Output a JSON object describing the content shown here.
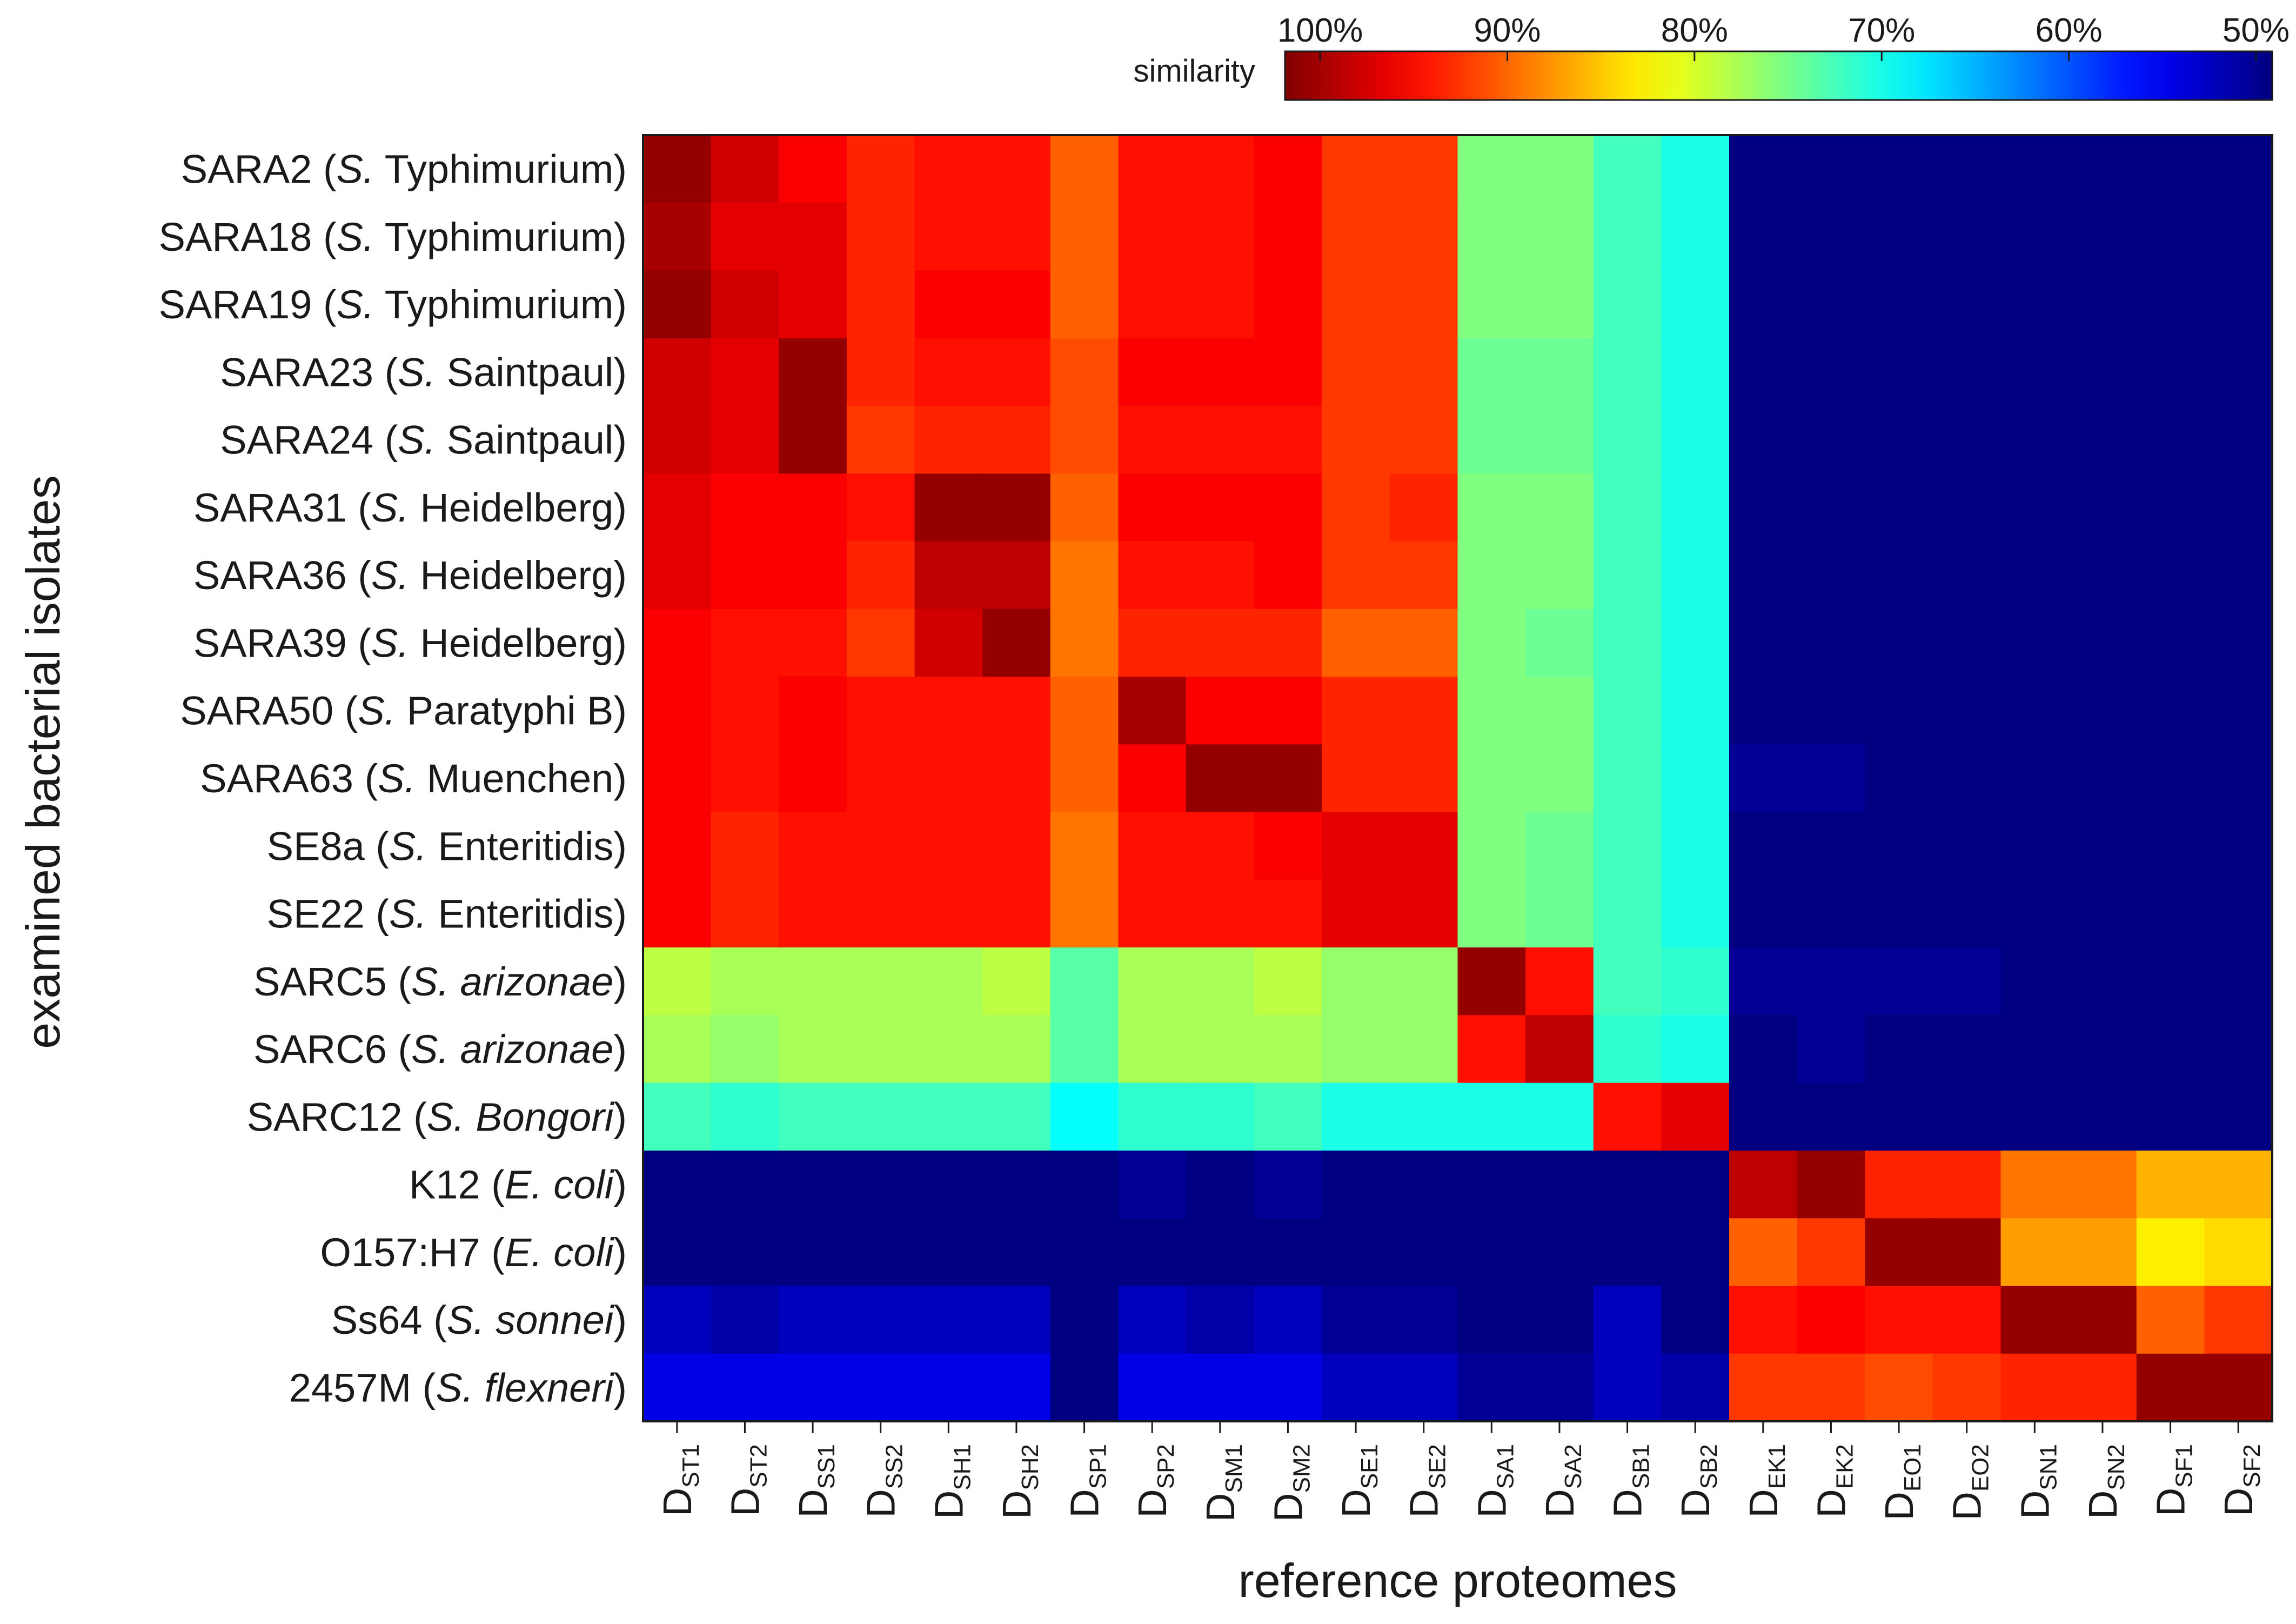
{
  "chart_data": {
    "type": "heatmap",
    "title": "",
    "xlabel": "reference proteomes",
    "ylabel": "examined bacterial isolates",
    "colorbar": {
      "label": "similarity",
      "ticks": [
        "100%",
        "90%",
        "80%",
        "70%",
        "60%",
        "50%"
      ],
      "range": [
        100,
        50
      ],
      "colormap": "jet"
    },
    "columns": [
      {
        "base": "D",
        "sub": "ST1"
      },
      {
        "base": "D",
        "sub": "ST2"
      },
      {
        "base": "D",
        "sub": "SS1"
      },
      {
        "base": "D",
        "sub": "SS2"
      },
      {
        "base": "D",
        "sub": "SH1"
      },
      {
        "base": "D",
        "sub": "SH2"
      },
      {
        "base": "D",
        "sub": "SP1"
      },
      {
        "base": "D",
        "sub": "SP2"
      },
      {
        "base": "D",
        "sub": "SM1"
      },
      {
        "base": "D",
        "sub": "SM2"
      },
      {
        "base": "D",
        "sub": "SE1"
      },
      {
        "base": "D",
        "sub": "SE2"
      },
      {
        "base": "D",
        "sub": "SA1"
      },
      {
        "base": "D",
        "sub": "SA2"
      },
      {
        "base": "D",
        "sub": "SB1"
      },
      {
        "base": "D",
        "sub": "SB2"
      },
      {
        "base": "D",
        "sub": "EK1"
      },
      {
        "base": "D",
        "sub": "EK2"
      },
      {
        "base": "D",
        "sub": "EO1"
      },
      {
        "base": "D",
        "sub": "EO2"
      },
      {
        "base": "D",
        "sub": "SN1"
      },
      {
        "base": "D",
        "sub": "SN2"
      },
      {
        "base": "D",
        "sub": "SF1"
      },
      {
        "base": "D",
        "sub": "SF2"
      }
    ],
    "rows": [
      {
        "name": "SARA2",
        "species": "S.",
        "rest": " Typhimurium",
        "italic_rest": false
      },
      {
        "name": "SARA18",
        "species": "S.",
        "rest": " Typhimurium",
        "italic_rest": false
      },
      {
        "name": "SARA19",
        "species": "S.",
        "rest": " Typhimurium",
        "italic_rest": false
      },
      {
        "name": "SARA23",
        "species": "S.",
        "rest": " Saintpaul",
        "italic_rest": false
      },
      {
        "name": "SARA24",
        "species": "S.",
        "rest": " Saintpaul",
        "italic_rest": false
      },
      {
        "name": "SARA31",
        "species": "S.",
        "rest": " Heidelberg",
        "italic_rest": false
      },
      {
        "name": "SARA36",
        "species": "S.",
        "rest": " Heidelberg",
        "italic_rest": false
      },
      {
        "name": "SARA39",
        "species": "S.",
        "rest": " Heidelberg",
        "italic_rest": false
      },
      {
        "name": "SARA50",
        "species": "S.",
        "rest": " Paratyphi B",
        "italic_rest": false
      },
      {
        "name": "SARA63",
        "species": "S.",
        "rest": " Muenchen",
        "italic_rest": false
      },
      {
        "name": "SE8a",
        "species": "S.",
        "rest": " Enteritidis",
        "italic_rest": false
      },
      {
        "name": "SE22",
        "species": "S.",
        "rest": " Enteritidis",
        "italic_rest": false
      },
      {
        "name": "SARC5",
        "species": "S.",
        "rest": " arizonae",
        "italic_rest": true
      },
      {
        "name": "SARC6",
        "species": "S.",
        "rest": " arizonae",
        "italic_rest": true
      },
      {
        "name": "SARC12",
        "species": "S.",
        "rest": " Bongori",
        "italic_rest": true
      },
      {
        "name": "K12",
        "species": "E.",
        "rest": " coli",
        "italic_rest": true
      },
      {
        "name": "O157:H7",
        "species": "E.",
        "rest": " coli",
        "italic_rest": true
      },
      {
        "name": "Ss64",
        "species": "S.",
        "rest": " sonnei",
        "italic_rest": true
      },
      {
        "name": "2457M",
        "species": "S.",
        "rest": " flexneri",
        "italic_rest": true
      }
    ],
    "values": [
      [
        99,
        96,
        94,
        92,
        93,
        93,
        89,
        93,
        93,
        94,
        91,
        91,
        75,
        75,
        72,
        70,
        50,
        50,
        50,
        50,
        50,
        50,
        50,
        50
      ],
      [
        98,
        95,
        95,
        92,
        93,
        93,
        89,
        93,
        93,
        94,
        91,
        91,
        75,
        75,
        72,
        70,
        50,
        50,
        50,
        50,
        50,
        50,
        50,
        50
      ],
      [
        99,
        96,
        95,
        92,
        94,
        94,
        89,
        93,
        93,
        94,
        91,
        91,
        75,
        75,
        72,
        70,
        50,
        50,
        50,
        50,
        50,
        50,
        50,
        50
      ],
      [
        96,
        95,
        99,
        92,
        93,
        93,
        90,
        94,
        94,
        94,
        91,
        91,
        74,
        74,
        72,
        70,
        50,
        50,
        50,
        50,
        50,
        50,
        50,
        50
      ],
      [
        96,
        95,
        99,
        91,
        92,
        92,
        90,
        93,
        93,
        93,
        91,
        91,
        74,
        74,
        72,
        70,
        50,
        50,
        50,
        50,
        50,
        50,
        50,
        50
      ],
      [
        95,
        94,
        94,
        93,
        99,
        99,
        89,
        94,
        94,
        94,
        91,
        92,
        75,
        75,
        72,
        70,
        50,
        50,
        50,
        50,
        50,
        50,
        50,
        50
      ],
      [
        95,
        94,
        94,
        92,
        97,
        97,
        88,
        93,
        93,
        94,
        91,
        91,
        75,
        75,
        72,
        70,
        50,
        50,
        50,
        50,
        50,
        50,
        50,
        50
      ],
      [
        94,
        93,
        93,
        91,
        96,
        99,
        88,
        92,
        92,
        92,
        89,
        89,
        75,
        74,
        72,
        70,
        50,
        50,
        50,
        50,
        50,
        50,
        50,
        50
      ],
      [
        94,
        93,
        94,
        93,
        93,
        93,
        89,
        98,
        94,
        94,
        92,
        92,
        75,
        75,
        72,
        70,
        50,
        50,
        50,
        50,
        50,
        50,
        50,
        50
      ],
      [
        94,
        93,
        94,
        93,
        93,
        93,
        89,
        94,
        99,
        99,
        92,
        92,
        75,
        75,
        72,
        70,
        51,
        51,
        50,
        50,
        50,
        50,
        50,
        50
      ],
      [
        94,
        92,
        93,
        93,
        93,
        93,
        88,
        93,
        93,
        94,
        95,
        95,
        75,
        74,
        72,
        70,
        50,
        50,
        50,
        50,
        50,
        50,
        50,
        50
      ],
      [
        94,
        92,
        93,
        93,
        93,
        93,
        88,
        93,
        93,
        93,
        95,
        95,
        75,
        74,
        72,
        70,
        50,
        50,
        50,
        50,
        50,
        50,
        50,
        50
      ],
      [
        78,
        77,
        77,
        77,
        77,
        78,
        73,
        77,
        77,
        78,
        76,
        76,
        99,
        93,
        72,
        71,
        51,
        51,
        51,
        51,
        50,
        50,
        50,
        50
      ],
      [
        77,
        76,
        77,
        77,
        77,
        77,
        73,
        77,
        77,
        77,
        76,
        76,
        93,
        97,
        71,
        70,
        50,
        51,
        50,
        50,
        50,
        50,
        50,
        50
      ],
      [
        72,
        71,
        72,
        72,
        72,
        72,
        69,
        71,
        71,
        72,
        70,
        70,
        70,
        70,
        93,
        95,
        50,
        50,
        50,
        50,
        50,
        50,
        50,
        50
      ],
      [
        50,
        50,
        50,
        50,
        50,
        50,
        50,
        51,
        50,
        51,
        50,
        50,
        50,
        50,
        50,
        50,
        97,
        99,
        92,
        92,
        88,
        88,
        85,
        85
      ],
      [
        50,
        50,
        50,
        50,
        50,
        50,
        50,
        50,
        50,
        50,
        50,
        50,
        50,
        50,
        50,
        50,
        89,
        91,
        99,
        99,
        86,
        86,
        82,
        83
      ],
      [
        53,
        52,
        53,
        53,
        53,
        53,
        50,
        53,
        52,
        53,
        51,
        51,
        50,
        50,
        53,
        50,
        93,
        94,
        93,
        93,
        99,
        99,
        89,
        91
      ],
      [
        55,
        55,
        55,
        55,
        55,
        55,
        50,
        55,
        55,
        55,
        53,
        53,
        51,
        51,
        53,
        52,
        91,
        91,
        90,
        91,
        92,
        92,
        99,
        99
      ]
    ]
  }
}
